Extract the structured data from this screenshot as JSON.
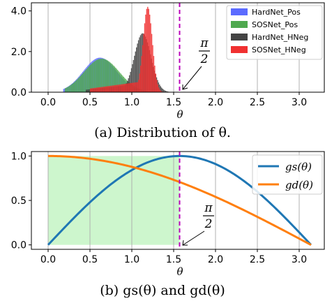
{
  "chart_data": [
    {
      "type": "bar",
      "caption": "(a) Distribution of θ.",
      "xlabel": "θ",
      "ylabel": "",
      "xlim": [
        -0.2,
        3.3
      ],
      "ylim": [
        0,
        4.4
      ],
      "xticks": [
        "0.0",
        "0.5",
        "1.0",
        "1.5",
        "2.0",
        "2.5",
        "3.0"
      ],
      "yticks": [
        "0.0",
        "2.0",
        "4.0"
      ],
      "grid": "vertical",
      "legend_position": "upper-right",
      "annotation": {
        "numerator": "π",
        "denominator": "2",
        "x": 1.5708
      },
      "vline_x": 1.5708,
      "bin_width": 0.012,
      "series": [
        {
          "name": "HardNet_Pos",
          "color": "#5b6bff",
          "mu": 0.62,
          "sigma": 0.2,
          "peak": 1.7,
          "x_min": 0.18,
          "x_max": 1.34
        },
        {
          "name": "SOSNet_Pos",
          "color": "#4fa94f",
          "mu": 0.64,
          "sigma": 0.21,
          "peak": 1.65,
          "x_min": 0.2,
          "x_max": 1.36
        },
        {
          "name": "HardNet_HNeg",
          "color": "#444444",
          "mu": 1.13,
          "sigma": 0.1,
          "peak": 2.9,
          "x_min": 0.45,
          "x_max": 1.48
        },
        {
          "name": "SOSNet_HNeg",
          "color": "#f03030",
          "mu": 1.19,
          "sigma": 0.055,
          "peak": 4.2,
          "x_min": 0.5,
          "x_max": 1.5
        }
      ]
    },
    {
      "type": "line",
      "caption": "(b) gs(θ) and gd(θ)",
      "xlabel": "θ",
      "ylabel": "",
      "xlim": [
        -0.2,
        3.3
      ],
      "ylim": [
        -0.05,
        1.05
      ],
      "xticks": [
        "0.0",
        "0.5",
        "1.0",
        "1.5",
        "2.0",
        "2.5",
        "3.0"
      ],
      "yticks": [
        "0.0",
        "0.5",
        "1.0"
      ],
      "grid": "vertical",
      "legend_position": "upper-right",
      "annotation": {
        "numerator": "π",
        "denominator": "2",
        "x": 1.5708
      },
      "vline_x": 1.5708,
      "shaded_region": [
        0,
        1.5708
      ],
      "series": [
        {
          "name": "gs(θ)",
          "color": "#1f77b4",
          "formula": "sin(θ)"
        },
        {
          "name": "gd(θ)",
          "color": "#ff7f0e",
          "formula": "cos(θ/2)"
        }
      ]
    }
  ]
}
